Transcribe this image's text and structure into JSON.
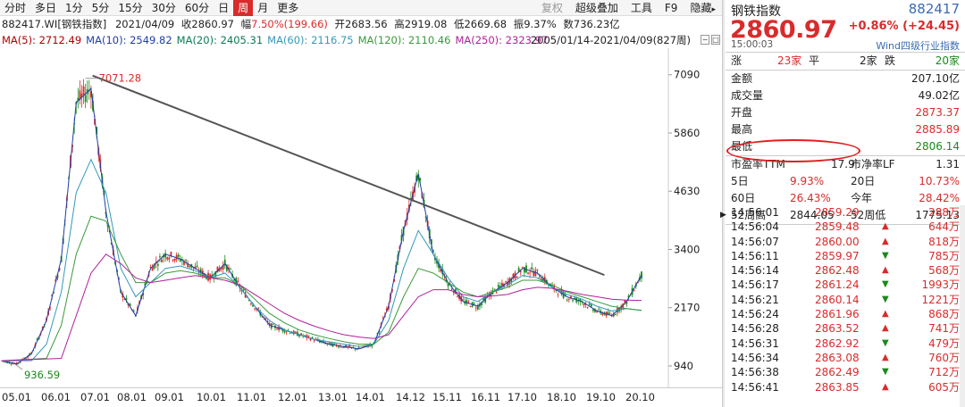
{
  "toolbar": {
    "items": [
      "分时",
      "多日",
      "1分",
      "5分",
      "15分",
      "30分",
      "60分",
      "日",
      "周",
      "月",
      "更多"
    ],
    "active_index": 8,
    "right_items": [
      "复权",
      "超级叠加",
      "工具",
      "F9"
    ],
    "hide_label": "隐藏",
    "hide_arrow": "▸"
  },
  "infobar": {
    "code": "882417.WI[钢铁指数]",
    "date": "2021/04/09",
    "close_label": "收",
    "close": "2860.97",
    "amp_label": "幅",
    "change": "7.50%(199.66)",
    "open_label": "开",
    "open": "2683.56",
    "high_label": "高",
    "high": "2919.08",
    "low_label": "低",
    "low": "2669.68",
    "swing_label": "振",
    "swing": "9.37%",
    "amount_label": "数",
    "amount": "736.23亿"
  },
  "ma": {
    "items": [
      {
        "label": "MA(5): 2712.49",
        "color": "#b00000"
      },
      {
        "label": "MA(10): 2549.82",
        "color": "#1f3ea8"
      },
      {
        "label": "MA(20): 2405.31",
        "color": "#0b7a55"
      },
      {
        "label": "MA(60): 2116.75",
        "color": "#3399bb"
      },
      {
        "label": "MA(120): 2110.46",
        "color": "#3a9a3a"
      },
      {
        "label": "MA(250): 2323.97",
        "color": "#b0209a"
      }
    ],
    "range": "2005/01/14-2021/04/09(827周)"
  },
  "chart_data": {
    "type": "line",
    "yticks": [
      7090,
      5860,
      4630,
      3400,
      2170,
      940
    ],
    "ylim": [
      600,
      7500
    ],
    "xticks": [
      "05.01",
      "06.01",
      "07.01",
      "08.01",
      "09.01",
      "10.01",
      "11.01",
      "12.01",
      "13.01",
      "14.01",
      "14.12",
      "15.11",
      "16.11",
      "17.10",
      "18.10",
      "19.10",
      "20.10"
    ],
    "annotations": [
      {
        "text": "7071.28",
        "x": "07.10",
        "y": 7071.28
      },
      {
        "text": "936.59",
        "x": "05.12",
        "y": 936.59
      }
    ],
    "series": [
      {
        "color": "#1f3ea8",
        "points": [
          [
            0,
            1050
          ],
          [
            1,
            980
          ],
          [
            2,
            1200
          ],
          [
            3,
            1900
          ],
          [
            4,
            3200
          ],
          [
            5,
            6500
          ],
          [
            6,
            6800
          ],
          [
            7,
            4200
          ],
          [
            8,
            2500
          ],
          [
            9,
            2000
          ],
          [
            10,
            3000
          ],
          [
            11,
            3300
          ],
          [
            12,
            3200
          ],
          [
            13,
            3000
          ],
          [
            14,
            2800
          ],
          [
            15,
            3100
          ],
          [
            16,
            2600
          ],
          [
            17,
            2200
          ],
          [
            18,
            1800
          ],
          [
            19,
            1700
          ],
          [
            20,
            1600
          ],
          [
            21,
            1500
          ],
          [
            22,
            1400
          ],
          [
            23,
            1350
          ],
          [
            24,
            1300
          ],
          [
            25,
            1400
          ],
          [
            26,
            2200
          ],
          [
            27,
            3800
          ],
          [
            28,
            5000
          ],
          [
            29,
            3300
          ],
          [
            30,
            2700
          ],
          [
            31,
            2300
          ],
          [
            32,
            2200
          ],
          [
            33,
            2500
          ],
          [
            34,
            2700
          ],
          [
            35,
            3000
          ],
          [
            36,
            2900
          ],
          [
            37,
            2600
          ],
          [
            38,
            2400
          ],
          [
            39,
            2300
          ],
          [
            40,
            2100
          ],
          [
            41,
            2000
          ],
          [
            42,
            2300
          ],
          [
            43,
            2860
          ]
        ]
      },
      {
        "color": "#3399bb",
        "points": [
          [
            0,
            1050
          ],
          [
            2,
            1050
          ],
          [
            3,
            1400
          ],
          [
            4,
            2500
          ],
          [
            5,
            4600
          ],
          [
            6,
            5300
          ],
          [
            7,
            4600
          ],
          [
            8,
            3000
          ],
          [
            9,
            2400
          ],
          [
            10,
            2700
          ],
          [
            11,
            3000
          ],
          [
            12,
            3050
          ],
          [
            13,
            2950
          ],
          [
            14,
            2800
          ],
          [
            15,
            2900
          ],
          [
            16,
            2600
          ],
          [
            17,
            2200
          ],
          [
            18,
            1900
          ],
          [
            19,
            1700
          ],
          [
            20,
            1600
          ],
          [
            21,
            1500
          ],
          [
            22,
            1450
          ],
          [
            23,
            1400
          ],
          [
            24,
            1350
          ],
          [
            25,
            1400
          ],
          [
            26,
            1900
          ],
          [
            27,
            3000
          ],
          [
            28,
            3800
          ],
          [
            29,
            3300
          ],
          [
            30,
            2800
          ],
          [
            31,
            2400
          ],
          [
            32,
            2300
          ],
          [
            33,
            2500
          ],
          [
            34,
            2650
          ],
          [
            35,
            2850
          ],
          [
            36,
            2800
          ],
          [
            37,
            2600
          ],
          [
            38,
            2450
          ],
          [
            39,
            2350
          ],
          [
            40,
            2200
          ],
          [
            41,
            2100
          ],
          [
            42,
            2150
          ],
          [
            43,
            2116
          ]
        ]
      },
      {
        "color": "#3a9a3a",
        "points": [
          [
            0,
            1050
          ],
          [
            3,
            1100
          ],
          [
            4,
            1800
          ],
          [
            5,
            3300
          ],
          [
            6,
            4100
          ],
          [
            7,
            4000
          ],
          [
            8,
            3300
          ],
          [
            9,
            2700
          ],
          [
            10,
            2700
          ],
          [
            11,
            2900
          ],
          [
            12,
            2950
          ],
          [
            13,
            2900
          ],
          [
            14,
            2800
          ],
          [
            15,
            2800
          ],
          [
            16,
            2650
          ],
          [
            17,
            2350
          ],
          [
            18,
            2050
          ],
          [
            19,
            1850
          ],
          [
            20,
            1700
          ],
          [
            21,
            1600
          ],
          [
            22,
            1520
          ],
          [
            23,
            1450
          ],
          [
            24,
            1400
          ],
          [
            25,
            1400
          ],
          [
            26,
            1650
          ],
          [
            27,
            2400
          ],
          [
            28,
            3000
          ],
          [
            29,
            2900
          ],
          [
            30,
            2700
          ],
          [
            31,
            2500
          ],
          [
            32,
            2400
          ],
          [
            33,
            2500
          ],
          [
            34,
            2600
          ],
          [
            35,
            2750
          ],
          [
            36,
            2750
          ],
          [
            37,
            2650
          ],
          [
            38,
            2500
          ],
          [
            39,
            2400
          ],
          [
            40,
            2300
          ],
          [
            41,
            2200
          ],
          [
            42,
            2150
          ],
          [
            43,
            2110
          ]
        ]
      },
      {
        "color": "#b0209a",
        "points": [
          [
            0,
            1050
          ],
          [
            4,
            1100
          ],
          [
            5,
            2000
          ],
          [
            6,
            2900
          ],
          [
            7,
            3300
          ],
          [
            8,
            3100
          ],
          [
            9,
            2800
          ],
          [
            10,
            2700
          ],
          [
            11,
            2750
          ],
          [
            12,
            2800
          ],
          [
            13,
            2850
          ],
          [
            14,
            2800
          ],
          [
            15,
            2750
          ],
          [
            16,
            2650
          ],
          [
            17,
            2450
          ],
          [
            18,
            2250
          ],
          [
            19,
            2050
          ],
          [
            20,
            1900
          ],
          [
            21,
            1780
          ],
          [
            22,
            1680
          ],
          [
            23,
            1600
          ],
          [
            24,
            1550
          ],
          [
            25,
            1520
          ],
          [
            26,
            1600
          ],
          [
            27,
            2000
          ],
          [
            28,
            2400
          ],
          [
            29,
            2550
          ],
          [
            30,
            2550
          ],
          [
            31,
            2450
          ],
          [
            32,
            2400
          ],
          [
            33,
            2420
          ],
          [
            34,
            2450
          ],
          [
            35,
            2550
          ],
          [
            36,
            2600
          ],
          [
            37,
            2580
          ],
          [
            38,
            2520
          ],
          [
            39,
            2450
          ],
          [
            40,
            2400
          ],
          [
            41,
            2350
          ],
          [
            42,
            2330
          ],
          [
            43,
            2324
          ]
        ]
      }
    ],
    "trendline": {
      "from": [
        6.1,
        7071.28
      ],
      "to": [
        40.5,
        2860
      ]
    }
  },
  "right_panel": {
    "name": "钢铁指数",
    "code": "882417",
    "price": "2860.97",
    "change": "+0.86% (+24.45)",
    "time": "15:00:03",
    "industry": "Wind四级行业指数",
    "up_label": "涨",
    "up_count": "23家",
    "flat_label": "平",
    "flat_count": "2家",
    "down_label": "跌",
    "down_count": "20家",
    "rows": [
      {
        "label": "金额",
        "value": "207.10亿",
        "cls": ""
      },
      {
        "label": "成交量",
        "value": "49.02亿",
        "cls": ""
      },
      {
        "label": "开盘",
        "value": "2873.37",
        "cls": "red"
      },
      {
        "label": "最高",
        "value": "2885.89",
        "cls": "red"
      },
      {
        "label": "最低",
        "value": "2806.14",
        "cls": "green"
      }
    ],
    "pe_label": "市盈率TTM",
    "pe_value": "17.9",
    "pb_label": "市净率LF",
    "pb_value": "1.31",
    "perf": [
      {
        "l1": "5日",
        "v1": "9.93%",
        "l2": "20日",
        "v2": "10.73%"
      },
      {
        "l1": "60日",
        "v1": "26.43%",
        "l2": "今年",
        "v2": "28.42%"
      },
      {
        "l1": "52周高",
        "v1": "2844.05",
        "l2": "52周低",
        "v2": "1775.13"
      }
    ],
    "ticks": [
      {
        "t": "14:56:01",
        "p": "2859.29",
        "d": "",
        "v": "288万"
      },
      {
        "t": "14:56:04",
        "p": "2859.48",
        "d": "up",
        "v": "644万"
      },
      {
        "t": "14:56:07",
        "p": "2860.00",
        "d": "up",
        "v": "818万"
      },
      {
        "t": "14:56:11",
        "p": "2859.97",
        "d": "down",
        "v": "785万"
      },
      {
        "t": "14:56:14",
        "p": "2862.48",
        "d": "up",
        "v": "568万"
      },
      {
        "t": "14:56:17",
        "p": "2861.24",
        "d": "down",
        "v": "1993万"
      },
      {
        "t": "14:56:21",
        "p": "2860.14",
        "d": "down",
        "v": "1221万"
      },
      {
        "t": "14:56:24",
        "p": "2861.96",
        "d": "up",
        "v": "868万"
      },
      {
        "t": "14:56:28",
        "p": "2863.52",
        "d": "up",
        "v": "741万"
      },
      {
        "t": "14:56:31",
        "p": "2862.92",
        "d": "down",
        "v": "479万"
      },
      {
        "t": "14:56:34",
        "p": "2863.08",
        "d": "up",
        "v": "760万"
      },
      {
        "t": "14:56:38",
        "p": "2862.49",
        "d": "down",
        "v": "712万"
      },
      {
        "t": "14:56:41",
        "p": "2863.85",
        "d": "up",
        "v": "605万"
      }
    ]
  }
}
